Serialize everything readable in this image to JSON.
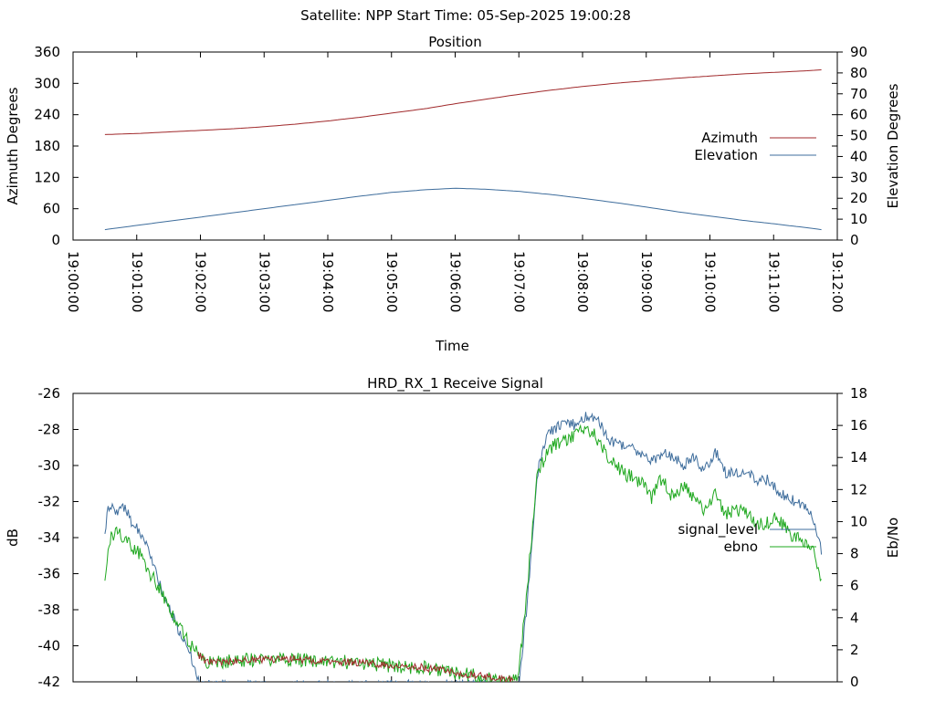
{
  "header": {
    "title": "Satellite: NPP    Start Time: 05-Sep-2025 19:00:28"
  },
  "chart_data": [
    {
      "type": "line",
      "title": "Position",
      "xlabel": "Time",
      "ylabel": "Azimuth Degrees",
      "y2label": "Elevation Degrees",
      "xlim": [
        "19:00:00",
        "19:12:00"
      ],
      "ylim": [
        0,
        360
      ],
      "y2lim": [
        0,
        90
      ],
      "x_ticks": [
        "19:00:00",
        "19:01:00",
        "19:02:00",
        "19:03:00",
        "19:04:00",
        "19:05:00",
        "19:06:00",
        "19:07:00",
        "19:08:00",
        "19:09:00",
        "19:10:00",
        "19:11:00",
        "19:12:00"
      ],
      "y_ticks": [
        "0",
        "60",
        "120",
        "180",
        "240",
        "300",
        "360"
      ],
      "y2_ticks": [
        "0",
        "10",
        "20",
        "30",
        "40",
        "50",
        "60",
        "70",
        "80",
        "90"
      ],
      "grid": false,
      "legend_position": "right",
      "series": [
        {
          "name": "Azimuth",
          "axis": "y",
          "color": "#a0292b",
          "x": [
            "19:00:30",
            "19:01:00",
            "19:01:30",
            "19:02:00",
            "19:02:30",
            "19:03:00",
            "19:03:30",
            "19:04:00",
            "19:04:30",
            "19:05:00",
            "19:05:30",
            "19:06:00",
            "19:06:30",
            "19:07:00",
            "19:07:30",
            "19:08:00",
            "19:08:30",
            "19:09:00",
            "19:09:30",
            "19:10:00",
            "19:10:30",
            "19:11:00",
            "19:11:30",
            "19:11:45"
          ],
          "values": [
            202,
            204,
            207,
            210,
            213,
            217,
            222,
            228,
            235,
            243,
            251,
            261,
            270,
            279,
            287,
            294,
            300,
            305,
            310,
            314,
            318,
            321,
            324,
            326
          ]
        },
        {
          "name": "Elevation",
          "axis": "y2",
          "color": "#3e6d9c",
          "x": [
            "19:00:30",
            "19:01:00",
            "19:01:30",
            "19:02:00",
            "19:02:30",
            "19:03:00",
            "19:03:30",
            "19:04:00",
            "19:04:30",
            "19:05:00",
            "19:05:30",
            "19:06:00",
            "19:06:30",
            "19:07:00",
            "19:07:30",
            "19:08:00",
            "19:08:30",
            "19:09:00",
            "19:09:30",
            "19:10:00",
            "19:10:30",
            "19:11:00",
            "19:11:30",
            "19:11:45"
          ],
          "values": [
            5,
            7,
            9,
            11,
            13,
            15,
            17,
            19,
            21,
            22.8,
            24,
            24.8,
            24.3,
            23.3,
            21.8,
            20,
            18,
            15.8,
            13.5,
            11.5,
            9.5,
            7.8,
            6,
            5
          ]
        }
      ]
    },
    {
      "type": "line",
      "title": "HRD_RX_1 Receive Signal",
      "ylabel": "dB",
      "y2label": "Eb/No",
      "xlim": [
        "19:00:00",
        "19:12:00"
      ],
      "ylim": [
        -42,
        -26
      ],
      "y2lim": [
        0,
        18
      ],
      "y_ticks": [
        "-26",
        "-28",
        "-30",
        "-32",
        "-34",
        "-36",
        "-38",
        "-40",
        "-42"
      ],
      "y2_ticks": [
        "0",
        "2",
        "4",
        "6",
        "8",
        "10",
        "12",
        "14",
        "16",
        "18"
      ],
      "grid": false,
      "legend_position": "right",
      "series": [
        {
          "name": "signal_level",
          "axis": "y",
          "color": "#3e6d9c",
          "x": [
            "19:00:30",
            "19:00:33",
            "19:00:40",
            "19:00:50",
            "19:00:55",
            "19:01:05",
            "19:01:10",
            "19:01:20",
            "19:01:25",
            "19:01:33",
            "19:01:40",
            "19:01:50",
            "19:01:55",
            "19:02:00",
            "19:07:00",
            "19:07:08",
            "19:07:17",
            "19:07:27",
            "19:07:35",
            "19:07:45",
            "19:07:55",
            "19:08:05",
            "19:08:15",
            "19:08:25",
            "19:08:35",
            "19:08:45",
            "19:08:55",
            "19:09:05",
            "19:09:15",
            "19:09:25",
            "19:09:35",
            "19:09:45",
            "19:09:55",
            "19:10:05",
            "19:10:15",
            "19:10:25",
            "19:10:35",
            "19:10:45",
            "19:10:55",
            "19:11:05",
            "19:11:15",
            "19:11:25",
            "19:11:35",
            "19:11:45"
          ],
          "values": [
            -34,
            -32.3,
            -32.5,
            -32.4,
            -33.2,
            -33.8,
            -34.4,
            -36.2,
            -37.2,
            -38.2,
            -39.3,
            -40.4,
            -41.4,
            -42.2,
            -42.2,
            -37.5,
            -30.5,
            -28.2,
            -27.9,
            -27.6,
            -27.8,
            -27.2,
            -27.6,
            -28.6,
            -28.8,
            -29,
            -29.4,
            -29.8,
            -29.3,
            -29.5,
            -30,
            -29.5,
            -30.3,
            -29.2,
            -30.4,
            -30.4,
            -30.3,
            -30.8,
            -30.8,
            -31.5,
            -31.8,
            -32.2,
            -32.6,
            -34.7
          ]
        },
        {
          "name": "ebno",
          "axis": "y2",
          "color": "#1fa81f",
          "x": [
            "19:00:30",
            "19:00:33",
            "19:00:40",
            "19:00:50",
            "19:00:55",
            "19:01:05",
            "19:01:10",
            "19:01:20",
            "19:01:25",
            "19:01:33",
            "19:01:40",
            "19:01:50",
            "19:01:58",
            "19:02:05",
            "19:02:15",
            "19:02:30",
            "19:03:00",
            "19:03:30",
            "19:04:00",
            "19:04:30",
            "19:05:00",
            "19:05:30",
            "19:06:00",
            "19:06:30",
            "19:06:55",
            "19:07:00",
            "19:07:08",
            "19:07:17",
            "19:07:27",
            "19:07:35",
            "19:07:45",
            "19:07:55",
            "19:08:05",
            "19:08:15",
            "19:08:25",
            "19:08:35",
            "19:08:45",
            "19:08:55",
            "19:09:05",
            "19:09:15",
            "19:09:25",
            "19:09:35",
            "19:09:45",
            "19:09:55",
            "19:10:05",
            "19:10:15",
            "19:10:25",
            "19:10:35",
            "19:10:45",
            "19:10:55",
            "19:11:05",
            "19:11:15",
            "19:11:25",
            "19:11:35",
            "19:11:45"
          ],
          "values": [
            6.5,
            8.5,
            9.5,
            8.8,
            8.5,
            7.8,
            7,
            6,
            5.3,
            4.3,
            3.4,
            2.4,
            1.7,
            1.3,
            1.2,
            1.3,
            1.4,
            1.4,
            1.3,
            1.2,
            1,
            0.9,
            0.6,
            0.3,
            0.1,
            0.5,
            6,
            12.8,
            14.5,
            14.8,
            15.2,
            15.4,
            15.9,
            15,
            14,
            13.2,
            12.8,
            12.5,
            11.5,
            12.8,
            11.5,
            12.2,
            11.6,
            10.5,
            12,
            10.4,
            10.8,
            10.4,
            9.8,
            10,
            10.2,
            9.2,
            9,
            8.5,
            6.3
          ]
        }
      ]
    }
  ]
}
